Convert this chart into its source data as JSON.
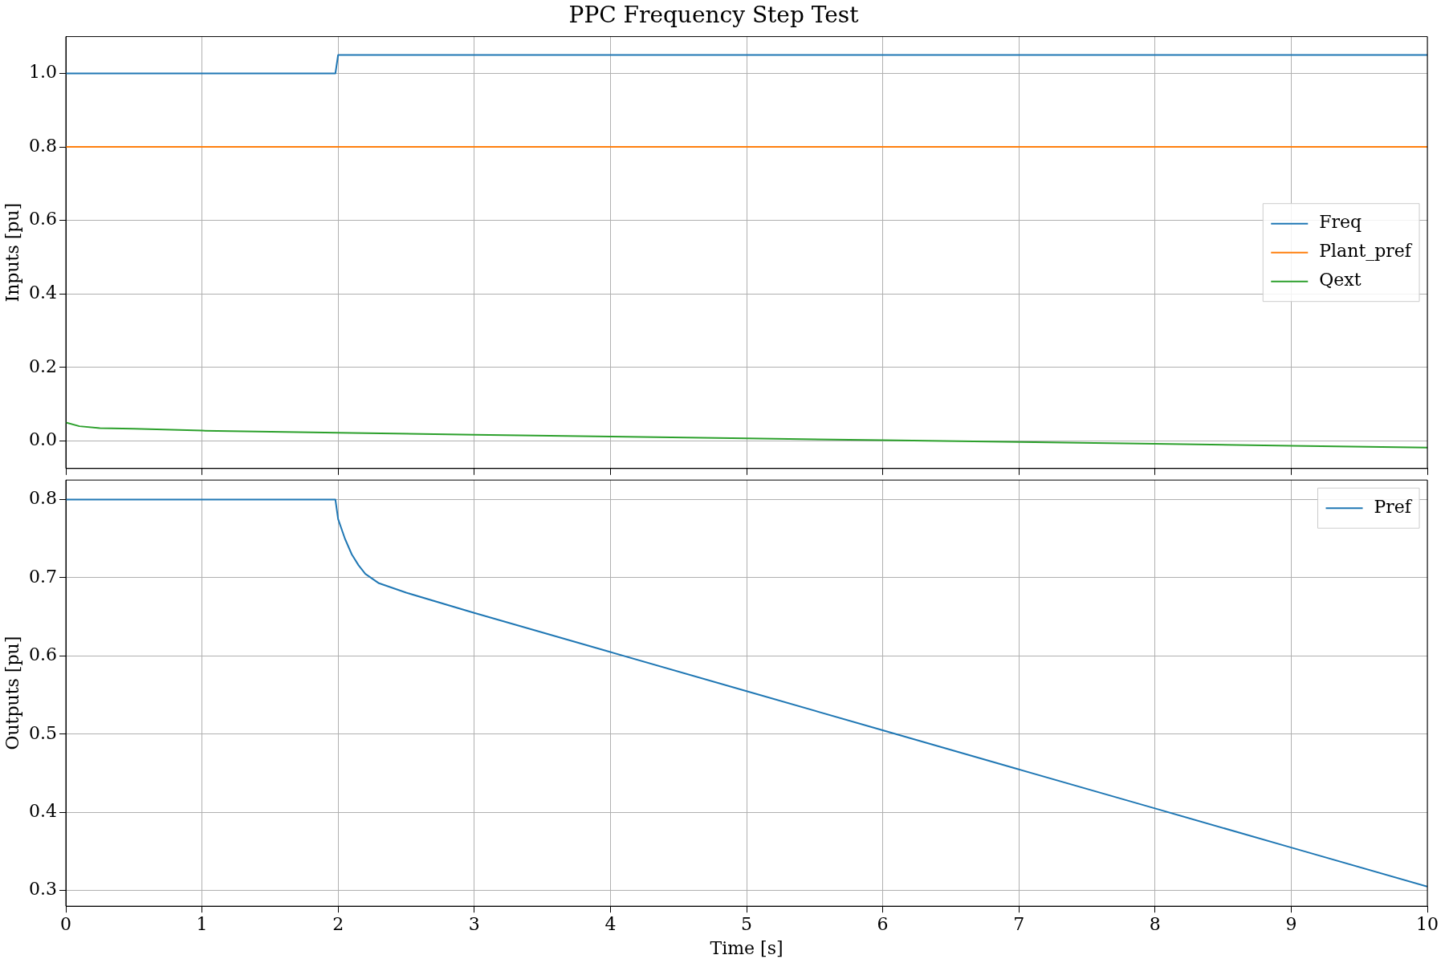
{
  "chart_data": [
    {
      "type": "line",
      "title": "PPC Frequency Step Test",
      "ylabel": "Inputs [pu]",
      "xlim": [
        0,
        10
      ],
      "xticks": [
        0,
        1,
        2,
        3,
        4,
        5,
        6,
        7,
        8,
        9,
        10
      ],
      "ylim": [
        -0.075,
        1.1
      ],
      "yticks": [
        {
          "value": 0,
          "label": "0.0"
        },
        0.2,
        0.4,
        0.6,
        0.8,
        {
          "value": 1,
          "label": "1.0"
        }
      ],
      "grid": true,
      "legend": "right",
      "tick_labels": "y",
      "series": [
        {
          "name": "Freq",
          "color": "#1f77b4",
          "x": [
            0,
            1.98,
            2.0,
            10
          ],
          "values": [
            1.0,
            1.0,
            1.05,
            1.05
          ]
        },
        {
          "name": "Plant_pref",
          "color": "#ff7f0e",
          "x": [
            0,
            10
          ],
          "values": [
            0.8,
            0.8
          ]
        },
        {
          "name": "Qext",
          "color": "#2ca02c",
          "x": [
            0,
            0.1,
            0.25,
            0.5,
            1,
            2,
            3,
            4,
            5,
            6,
            7,
            8,
            9,
            10
          ],
          "values": [
            0.05,
            0.04,
            0.035,
            0.033,
            0.028,
            0.022,
            0.017,
            0.012,
            0.007,
            0.002,
            -0.003,
            -0.008,
            -0.013,
            -0.018
          ]
        }
      ]
    },
    {
      "type": "line",
      "xlabel": "Time [s]",
      "ylabel": "Outputs [pu]",
      "xlim": [
        0,
        10
      ],
      "xticks": [
        0,
        1,
        2,
        3,
        4,
        5,
        6,
        7,
        8,
        9,
        10
      ],
      "ylim": [
        0.28,
        0.825
      ],
      "yticks": [
        0.3,
        0.4,
        0.5,
        0.6,
        0.7,
        0.8
      ],
      "grid": true,
      "legend": "top right",
      "series": [
        {
          "name": "Pref",
          "color": "#1f77b4",
          "x": [
            0,
            1.98,
            2.0,
            2.05,
            2.1,
            2.15,
            2.2,
            2.3,
            2.5,
            3,
            4,
            5,
            6,
            7,
            8,
            9,
            10
          ],
          "values": [
            0.8,
            0.8,
            0.775,
            0.75,
            0.73,
            0.716,
            0.705,
            0.693,
            0.681,
            0.655,
            0.605,
            0.555,
            0.505,
            0.455,
            0.405,
            0.355,
            0.305
          ]
        }
      ]
    }
  ]
}
